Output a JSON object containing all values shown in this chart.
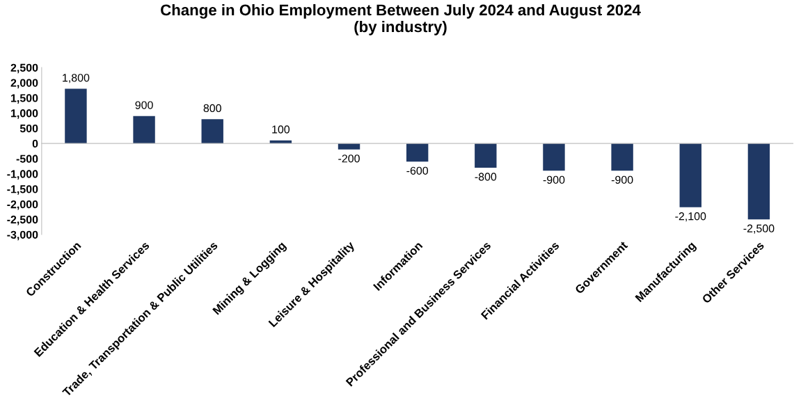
{
  "chart_data": {
    "type": "bar",
    "title": "Change in Ohio Employment Between July 2024 and August 2024\n(by industry)",
    "categories": [
      "Construction",
      "Education & Health Services",
      "Trade, Transportation & Public Utilities",
      "Mining & Logging",
      "Leisure & Hospitality",
      "Information",
      "Professional and Business Services",
      "Financial Activities",
      "Government",
      "Manufacturing",
      "Other Services"
    ],
    "values": [
      1800,
      900,
      800,
      100,
      -200,
      -600,
      -800,
      -900,
      -900,
      -2100,
      -2500
    ],
    "color": "#1f3864",
    "ylim": [
      -3000,
      2500
    ],
    "yticks": [
      {
        "value": -3000,
        "label": "-3,000"
      },
      {
        "value": -2500,
        "label": "-2,500"
      },
      {
        "value": -2000,
        "label": "-2,000"
      },
      {
        "value": -1500,
        "label": "-1,500"
      },
      {
        "value": -1000,
        "label": "-1,000"
      },
      {
        "value": -500,
        "label": "-500"
      },
      {
        "value": 0,
        "label": "0"
      },
      {
        "value": 500,
        "label": "500"
      },
      {
        "value": 1000,
        "label": "1,000"
      },
      {
        "value": 1500,
        "label": "1,500"
      },
      {
        "value": 2000,
        "label": "2,000"
      },
      {
        "value": 2500,
        "label": "2,500"
      }
    ],
    "value_labels": [
      "1,800",
      "900",
      "800",
      "100",
      "-200",
      "-600",
      "-800",
      "-900",
      "-900",
      "-2,100",
      "-2,500"
    ],
    "legend": false
  }
}
